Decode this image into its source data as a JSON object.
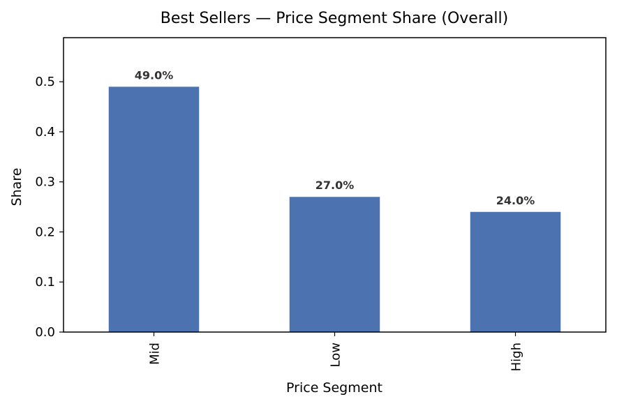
{
  "chart_data": {
    "type": "bar",
    "title": "Best Sellers — Price Segment Share (Overall)",
    "xlabel": "Price Segment",
    "ylabel": "Share",
    "categories": [
      "Mid",
      "Low",
      "High"
    ],
    "values": [
      0.49,
      0.27,
      0.24
    ],
    "data_labels": [
      "49.0%",
      "27.0%",
      "24.0%"
    ],
    "y_ticks": [
      0.0,
      0.1,
      0.2,
      0.3,
      0.4,
      0.5
    ],
    "y_tick_labels": [
      "0.0",
      "0.1",
      "0.2",
      "0.3",
      "0.4",
      "0.5"
    ],
    "ylim": [
      0,
      0.588
    ],
    "grid": false,
    "legend": "none",
    "colors": {
      "bar": "#4c72b0",
      "axes": "#000000",
      "data_label": "#333333"
    }
  }
}
